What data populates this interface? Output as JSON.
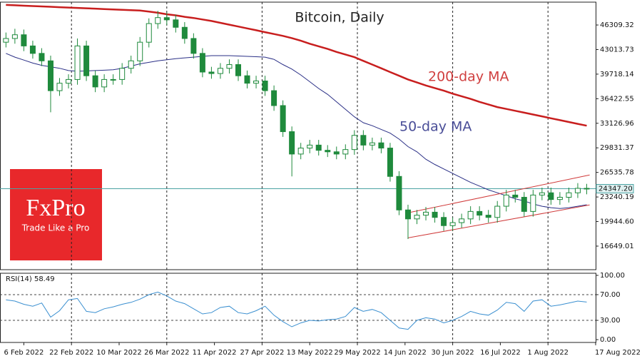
{
  "chart_data": [
    {
      "type": "candlestick",
      "title": "Bitcoin, Daily",
      "x": [
        "31 Jan 2022",
        "3 Feb 2022",
        "6 Feb 2022",
        "9 Feb 2022",
        "12 Feb 2022",
        "15 Feb 2022",
        "18 Feb 2022",
        "21 Feb 2022",
        "24 Feb 2022",
        "27 Feb 2022",
        "2 Mar 2022",
        "5 Mar 2022",
        "8 Mar 2022",
        "11 Mar 2022",
        "14 Mar 2022",
        "17 Mar 2022",
        "20 Mar 2022",
        "23 Mar 2022",
        "26 Mar 2022",
        "29 Mar 2022",
        "1 Apr 2022",
        "4 Apr 2022",
        "7 Apr 2022",
        "10 Apr 2022",
        "13 Apr 2022",
        "16 Apr 2022",
        "19 Apr 2022",
        "22 Apr 2022",
        "25 Apr 2022",
        "28 Apr 2022",
        "1 May 2022",
        "4 May 2022",
        "7 May 2022",
        "10 May 2022",
        "13 May 2022",
        "16 May 2022",
        "19 May 2022",
        "22 May 2022",
        "25 May 2022",
        "28 May 2022",
        "31 May 2022",
        "3 Jun 2022",
        "6 Jun 2022",
        "9 Jun 2022",
        "12 Jun 2022",
        "15 Jun 2022",
        "18 Jun 2022",
        "21 Jun 2022",
        "24 Jun 2022",
        "27 Jun 2022",
        "30 Jun 2022",
        "3 Jul 2022",
        "6 Jul 2022",
        "9 Jul 2022",
        "12 Jul 2022",
        "15 Jul 2022",
        "18 Jul 2022",
        "21 Jul 2022",
        "24 Jul 2022",
        "27 Jul 2022",
        "30 Jul 2022",
        "2 Aug 2022",
        "5 Aug 2022",
        "8 Aug 2022",
        "11 Aug 2022",
        "14 Aug 2022"
      ],
      "open": [
        44000,
        44500,
        45000,
        43500,
        42500,
        41500,
        37500,
        38500,
        39000,
        43500,
        39500,
        38000,
        39000,
        39000,
        40500,
        41500,
        44000,
        46500,
        47300,
        47000,
        46000,
        44500,
        42500,
        40000,
        39800,
        40500,
        41000,
        39500,
        38500,
        38800,
        37500,
        35500,
        32000,
        29000,
        29800,
        30200,
        29500,
        29300,
        29000,
        29600,
        31500,
        30200,
        30500,
        29800,
        26000,
        21500,
        20300,
        20800,
        21200,
        20500,
        19400,
        19800,
        20300,
        21300,
        20800,
        20500,
        22000,
        23500,
        23200,
        21300,
        23500,
        23800,
        22900,
        23200,
        23800,
        24400
      ],
      "high": [
        45300,
        45800,
        45700,
        44200,
        43200,
        42200,
        39200,
        39700,
        44500,
        44200,
        40200,
        39700,
        39700,
        41200,
        42200,
        44700,
        47200,
        48200,
        48000,
        47700,
        46700,
        45200,
        43200,
        40700,
        41200,
        41700,
        41700,
        40200,
        39500,
        39500,
        38200,
        36200,
        32700,
        30500,
        30900,
        30900,
        30200,
        30000,
        30300,
        32200,
        32200,
        31200,
        31200,
        30500,
        26700,
        22200,
        21500,
        21900,
        21900,
        21200,
        20500,
        21000,
        22000,
        22000,
        21500,
        22700,
        24200,
        24200,
        23900,
        24200,
        24500,
        24500,
        23900,
        24500,
        25100,
        25000
      ],
      "low": [
        43300,
        43800,
        42800,
        41800,
        40800,
        34600,
        36800,
        37800,
        38300,
        38800,
        37300,
        37300,
        38300,
        38300,
        39800,
        40800,
        43300,
        45800,
        46300,
        45300,
        43800,
        41800,
        39300,
        39100,
        39100,
        39800,
        38800,
        37800,
        37800,
        36800,
        34800,
        31300,
        26000,
        28300,
        29100,
        28800,
        28600,
        28300,
        28300,
        28900,
        29500,
        29500,
        29100,
        25300,
        20800,
        17600,
        19600,
        20100,
        19800,
        18700,
        18700,
        19100,
        19600,
        20100,
        19800,
        19800,
        21300,
        22500,
        20600,
        20600,
        22800,
        22200,
        22200,
        22500,
        23100,
        23600
      ],
      "close": [
        44500,
        45000,
        43500,
        42500,
        41500,
        37500,
        38500,
        39000,
        43500,
        39500,
        38000,
        39000,
        39000,
        40500,
        41500,
        44000,
        46500,
        47300,
        47000,
        46000,
        44500,
        42500,
        40000,
        39800,
        40500,
        41000,
        39500,
        38500,
        38800,
        37500,
        35500,
        32000,
        29000,
        29800,
        30200,
        29500,
        29300,
        29000,
        29600,
        31500,
        30200,
        30500,
        29800,
        26000,
        21500,
        20300,
        20800,
        21200,
        20500,
        19400,
        19800,
        20300,
        21300,
        20800,
        20500,
        22000,
        23500,
        23200,
        21300,
        23500,
        23800,
        22900,
        23200,
        23800,
        24400,
        24347.2
      ],
      "color": "#1f8a3c",
      "series": [
        {
          "name": "200-day MA",
          "color": "#c81e1e",
          "values": [
            49000,
            48950,
            48900,
            48850,
            48800,
            48750,
            48700,
            48650,
            48600,
            48550,
            48500,
            48450,
            48400,
            48350,
            48300,
            48250,
            48100,
            47950,
            47750,
            47600,
            47400,
            47250,
            47050,
            46850,
            46600,
            46350,
            46100,
            45850,
            45600,
            45350,
            45100,
            44850,
            44550,
            44200,
            43800,
            43450,
            43100,
            42700,
            42350,
            42000,
            41500,
            41000,
            40500,
            40000,
            39500,
            39000,
            38600,
            38200,
            37850,
            37500,
            37100,
            36750,
            36400,
            36000,
            35650,
            35300,
            35050,
            34800,
            34550,
            34300,
            34050,
            33800,
            33550,
            33300,
            33050,
            32800
          ]
        },
        {
          "name": "50-day MA",
          "color": "#2a2f86",
          "values": [
            42500,
            42000,
            41600,
            41200,
            40900,
            40700,
            40500,
            40200,
            40100,
            40150,
            40200,
            40250,
            40300,
            40500,
            40800,
            41100,
            41300,
            41500,
            41650,
            41800,
            41900,
            42000,
            42100,
            42200,
            42200,
            42200,
            42150,
            42100,
            42050,
            42000,
            41700,
            41000,
            40400,
            39600,
            38700,
            37800,
            37000,
            36000,
            35000,
            34000,
            33200,
            32800,
            32300,
            31800,
            31000,
            30000,
            29300,
            28300,
            27600,
            27000,
            26400,
            25800,
            25200,
            24700,
            24200,
            23800,
            23400,
            23000,
            22700,
            22300,
            22000,
            21800,
            21700,
            21800,
            22000,
            22200
          ]
        }
      ],
      "channel": {
        "color": "#d03a3a",
        "lines": [
          {
            "x": [
              "15 Jun 2022",
              "15 Aug 2022"
            ],
            "values": [
              21114,
              26191
            ]
          },
          {
            "x": [
              "15 Jun 2022",
              "15 Aug 2022"
            ],
            "values": [
              17760,
              22167
            ]
          }
        ]
      },
      "last_price": {
        "value": 24347.2,
        "label": "24347.20",
        "color": "#4aa3a3"
      },
      "xlim": [
        "29 Jan 2022",
        "17 Aug 2022"
      ],
      "xticks": [
        "6 Feb 2022",
        "22 Feb 2022",
        "10 Mar 2022",
        "26 Mar 2022",
        "11 Apr 2022",
        "27 Apr 2022",
        "13 May 2022",
        "29 May 2022",
        "14 Jun 2022",
        "30 Jun 2022",
        "16 Jul 2022",
        "1 Aug 2022",
        "17 Aug 2022"
      ],
      "ylim": [
        13488,
        49375
      ],
      "yticks": [
        {
          "value": 46309.32,
          "label": "46309.32"
        },
        {
          "value": 43013.73,
          "label": "43013.73"
        },
        {
          "value": 39718.14,
          "label": "39718.14"
        },
        {
          "value": 36422.55,
          "label": "36422.55"
        },
        {
          "value": 33126.96,
          "label": "33126.96"
        },
        {
          "value": 29831.37,
          "label": "29831.37"
        },
        {
          "value": 26535.78,
          "label": "26535.78"
        },
        {
          "value": 23240.19,
          "label": "23240.19"
        },
        {
          "value": 19944.6,
          "label": "19944.60"
        },
        {
          "value": 16649.01,
          "label": "16649.01"
        }
      ]
    },
    {
      "type": "line",
      "title": "RSI(14) 58.49",
      "x": [
        "31 Jan 2022",
        "3 Feb 2022",
        "6 Feb 2022",
        "9 Feb 2022",
        "12 Feb 2022",
        "15 Feb 2022",
        "18 Feb 2022",
        "21 Feb 2022",
        "24 Feb 2022",
        "27 Feb 2022",
        "2 Mar 2022",
        "5 Mar 2022",
        "8 Mar 2022",
        "11 Mar 2022",
        "14 Mar 2022",
        "17 Mar 2022",
        "20 Mar 2022",
        "23 Mar 2022",
        "26 Mar 2022",
        "29 Mar 2022",
        "1 Apr 2022",
        "4 Apr 2022",
        "7 Apr 2022",
        "10 Apr 2022",
        "13 Apr 2022",
        "16 Apr 2022",
        "19 Apr 2022",
        "22 Apr 2022",
        "25 Apr 2022",
        "28 Apr 2022",
        "1 May 2022",
        "4 May 2022",
        "7 May 2022",
        "10 May 2022",
        "13 May 2022",
        "16 May 2022",
        "19 May 2022",
        "22 May 2022",
        "25 May 2022",
        "28 May 2022",
        "31 May 2022",
        "3 Jun 2022",
        "6 Jun 2022",
        "9 Jun 2022",
        "12 Jun 2022",
        "15 Jun 2022",
        "18 Jun 2022",
        "21 Jun 2022",
        "24 Jun 2022",
        "27 Jun 2022",
        "30 Jun 2022",
        "3 Jul 2022",
        "6 Jul 2022",
        "9 Jul 2022",
        "12 Jul 2022",
        "15 Jul 2022",
        "18 Jul 2022",
        "21 Jul 2022",
        "24 Jul 2022",
        "27 Jul 2022",
        "30 Jul 2022",
        "2 Aug 2022",
        "5 Aug 2022",
        "8 Aug 2022",
        "11 Aug 2022",
        "14 Aug 2022"
      ],
      "values": [
        62,
        60,
        55,
        52,
        57,
        35,
        45,
        62,
        64,
        44,
        42,
        48,
        51,
        55,
        58,
        63,
        70,
        74,
        68,
        60,
        56,
        48,
        40,
        42,
        50,
        52,
        42,
        40,
        45,
        52,
        38,
        28,
        20,
        26,
        30,
        29,
        31,
        32,
        36,
        50,
        44,
        47,
        42,
        30,
        18,
        16,
        30,
        34,
        32,
        26,
        30,
        36,
        44,
        40,
        38,
        46,
        58,
        56,
        44,
        60,
        62,
        52,
        54,
        57,
        60,
        58.49
      ],
      "color": "#3a8fd0",
      "ylim": [
        -4.4,
        103.3
      ],
      "yticks": [
        {
          "value": 100,
          "label": "100.00"
        },
        {
          "value": 70,
          "label": "70.00"
        },
        {
          "value": 30,
          "label": "30.00"
        },
        {
          "value": 0,
          "label": "0.00"
        }
      ]
    }
  ],
  "logo": {
    "brand": "FxPro",
    "tagline": "Trade Like a Pro"
  }
}
